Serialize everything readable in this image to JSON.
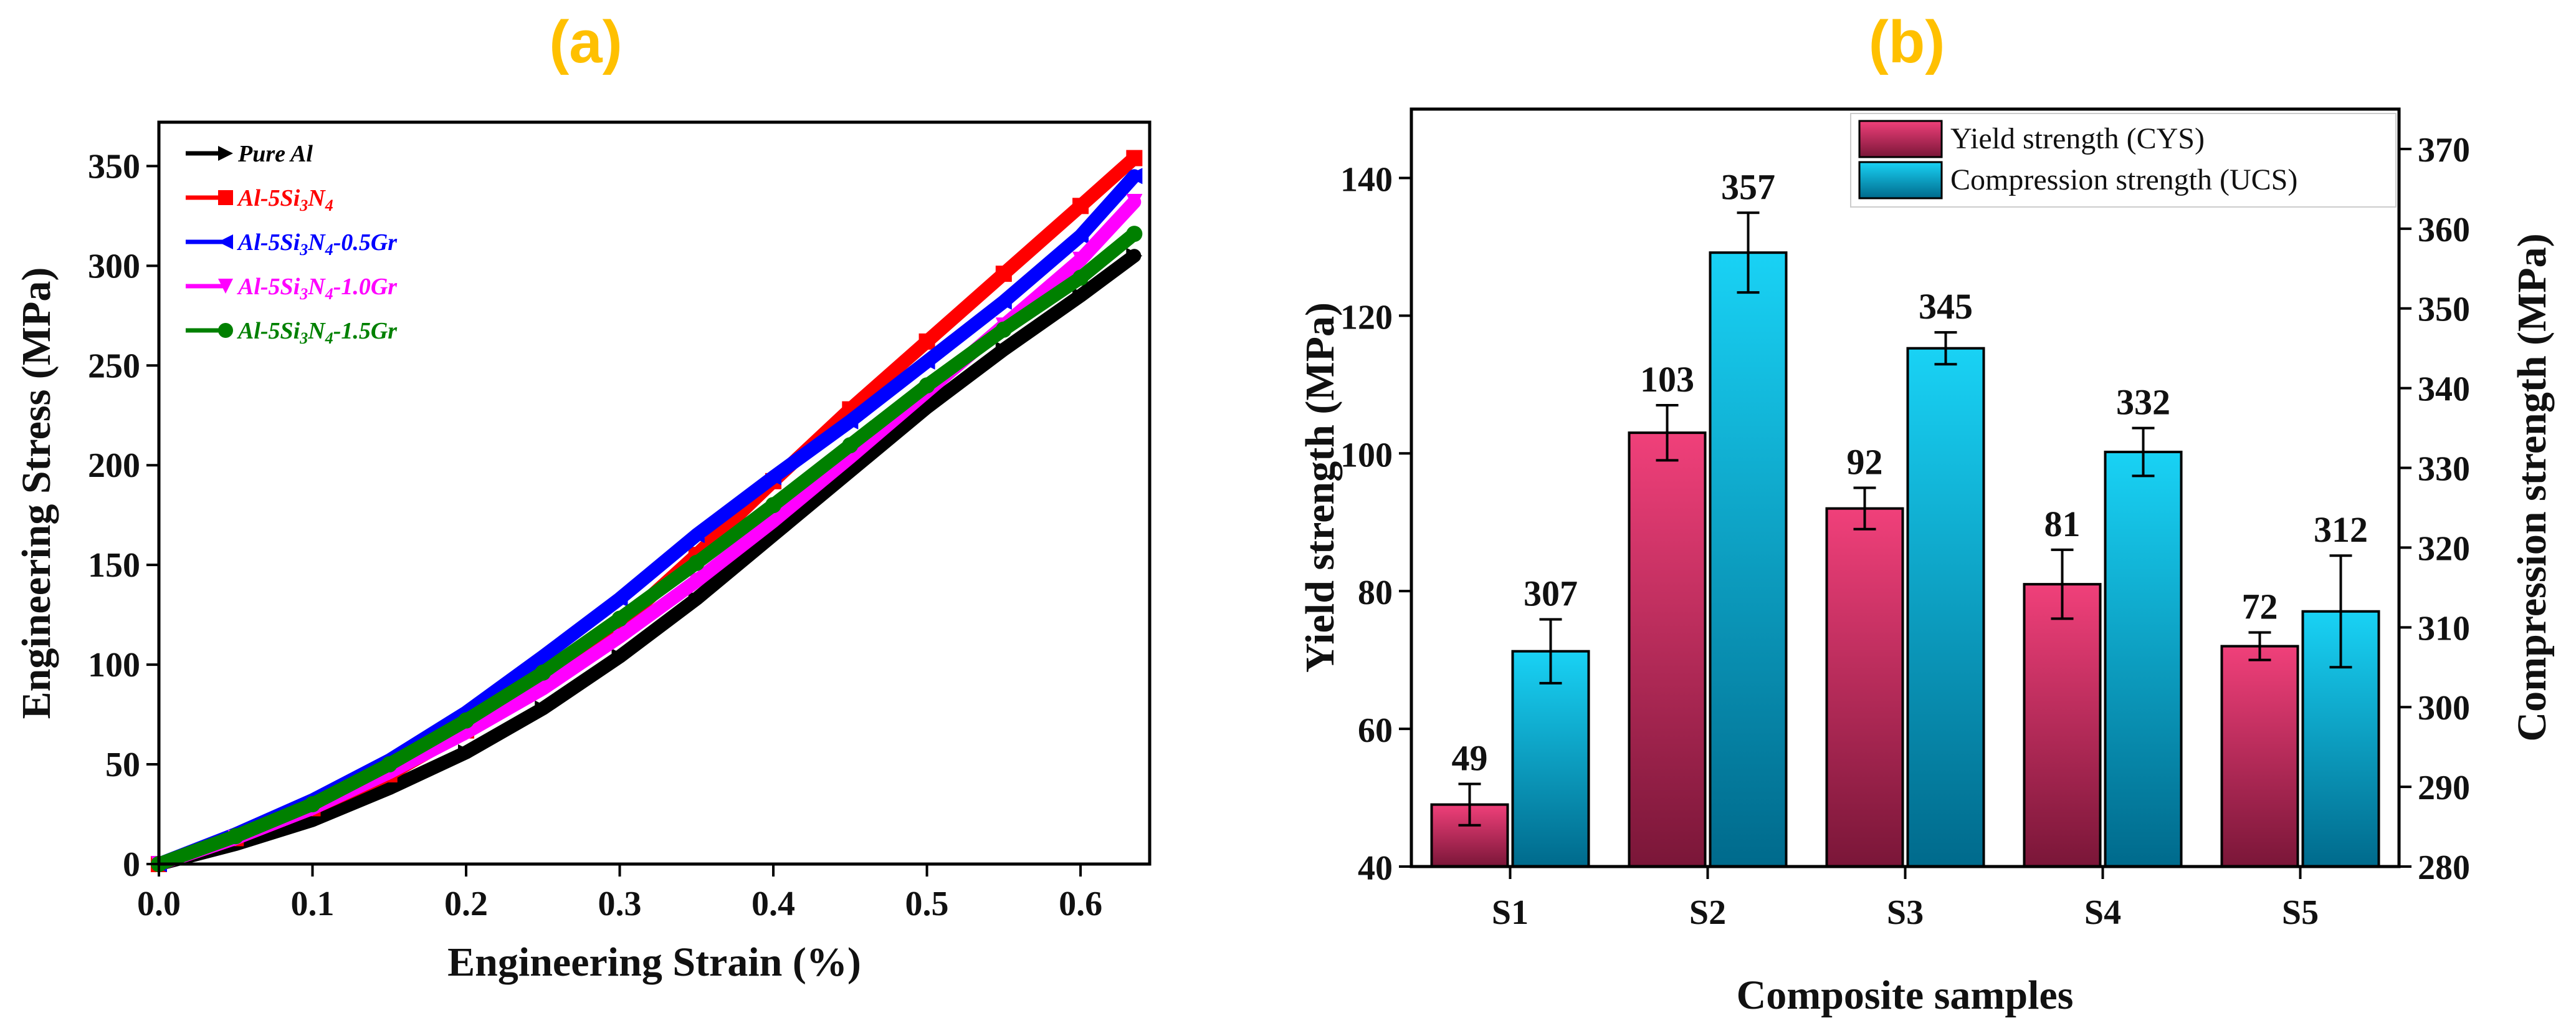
{
  "panels": {
    "a_label": "(a)",
    "b_label": "(b)",
    "label_color": "#FFC000"
  },
  "chart_data": [
    {
      "type": "line",
      "id": "a",
      "title": "",
      "xlabel": "Engineering Strain (%)",
      "ylabel": "Engineering Stress (MPa)",
      "xlim": [
        0,
        0.645
      ],
      "ylim": [
        0,
        372
      ],
      "xticks": [
        0.0,
        0.1,
        0.2,
        0.3,
        0.4,
        0.5,
        0.6
      ],
      "xtick_labels": [
        "0.0",
        "0.1",
        "0.2",
        "0.3",
        "0.4",
        "0.5",
        "0.6"
      ],
      "yticks": [
        0,
        50,
        100,
        150,
        200,
        250,
        300,
        350
      ],
      "ytick_labels": [
        "0",
        "50",
        "100",
        "150",
        "200",
        "250",
        "300",
        "350"
      ],
      "legend_position": "top-left",
      "series": [
        {
          "name": "Pure Al",
          "label_main": "Pure Al",
          "sub1": "",
          "mid": "",
          "sub2": "",
          "suffix": "",
          "color": "#000000",
          "marker": "triangle-right",
          "x": [
            0.0,
            0.05,
            0.1,
            0.15,
            0.2,
            0.25,
            0.3,
            0.35,
            0.4,
            0.45,
            0.5,
            0.55,
            0.6,
            0.635
          ],
          "y": [
            0,
            10,
            22,
            38,
            56,
            78,
            104,
            133,
            165,
            197,
            229,
            258,
            285,
            305
          ]
        },
        {
          "name": "Al-5Si3N4",
          "label_main": "Al-5Si",
          "sub1": "3",
          "mid": "N",
          "sub2": "4",
          "suffix": "",
          "color": "#FF0000",
          "marker": "square",
          "x": [
            0.0,
            0.05,
            0.1,
            0.15,
            0.2,
            0.25,
            0.3,
            0.35,
            0.4,
            0.45,
            0.5,
            0.55,
            0.6,
            0.635
          ],
          "y": [
            0,
            13,
            28,
            45,
            67,
            91,
            120,
            155,
            192,
            228,
            262,
            296,
            330,
            354
          ]
        },
        {
          "name": "Al-5Si3N4-0.5Gr",
          "label_main": "Al-5Si",
          "sub1": "3",
          "mid": "N",
          "sub2": "4",
          "suffix": "-0.5Gr",
          "color": "#0000FF",
          "marker": "triangle-left",
          "x": [
            0.0,
            0.05,
            0.1,
            0.15,
            0.2,
            0.25,
            0.3,
            0.35,
            0.4,
            0.45,
            0.5,
            0.55,
            0.6,
            0.635
          ],
          "y": [
            0,
            15,
            32,
            52,
            76,
            104,
            133,
            165,
            194,
            222,
            252,
            282,
            315,
            345
          ]
        },
        {
          "name": "Al-5Si3N4-1.0Gr",
          "label_main": "Al-5Si",
          "sub1": "3",
          "mid": "N",
          "sub2": "4",
          "suffix": "-1.0Gr",
          "color": "#FF00FF",
          "marker": "triangle-down",
          "x": [
            0.0,
            0.05,
            0.1,
            0.15,
            0.2,
            0.25,
            0.3,
            0.35,
            0.4,
            0.45,
            0.5,
            0.55,
            0.6,
            0.635
          ],
          "y": [
            0,
            13,
            28,
            46,
            66,
            88,
            114,
            142,
            172,
            204,
            237,
            270,
            303,
            332
          ]
        },
        {
          "name": "Al-5Si3N4-1.5Gr",
          "label_main": "Al-5Si",
          "sub1": "3",
          "mid": "N",
          "sub2": "4",
          "suffix": "-1.5Gr",
          "color": "#008000",
          "marker": "circle",
          "x": [
            0.0,
            0.05,
            0.1,
            0.15,
            0.2,
            0.25,
            0.3,
            0.35,
            0.4,
            0.45,
            0.5,
            0.55,
            0.6,
            0.635
          ],
          "y": [
            0,
            14,
            30,
            50,
            72,
            96,
            123,
            151,
            180,
            210,
            240,
            268,
            294,
            316
          ]
        }
      ]
    },
    {
      "type": "bar",
      "id": "b",
      "title": "",
      "xlabel": "Composite samples",
      "ylabel": "Yield strength (MPa)",
      "y2label": "Compression strength (MPa)",
      "categories": [
        "S1",
        "S2",
        "S3",
        "S4",
        "S5"
      ],
      "ylim": [
        40,
        150
      ],
      "y2lim": [
        280,
        375
      ],
      "yticks": [
        40,
        60,
        80,
        100,
        120,
        140
      ],
      "ytick_labels": [
        "40",
        "60",
        "80",
        "100",
        "120",
        "140"
      ],
      "y2ticks": [
        280,
        290,
        300,
        310,
        320,
        330,
        340,
        350,
        360,
        370
      ],
      "y2tick_labels": [
        "280",
        "290",
        "300",
        "310",
        "320",
        "330",
        "340",
        "350",
        "360",
        "370"
      ],
      "legend_position": "top-right",
      "series": [
        {
          "name": "Yield strength (CYS)",
          "axis": "left",
          "color_top": "#F0407A",
          "color_bottom": "#7A1638",
          "values": [
            49,
            103,
            92,
            81,
            72
          ],
          "errors": [
            3,
            4,
            3,
            5,
            2
          ],
          "labels": [
            "49",
            "103",
            "92",
            "81",
            "72"
          ]
        },
        {
          "name": "Compression strength (UCS)",
          "axis": "right",
          "color_top": "#19D2F5",
          "color_bottom": "#006A8C",
          "values": [
            307,
            357,
            345,
            332,
            312
          ],
          "errors": [
            4,
            5,
            2,
            3,
            7
          ],
          "labels": [
            "307",
            "357",
            "345",
            "332",
            "312"
          ]
        }
      ]
    }
  ]
}
